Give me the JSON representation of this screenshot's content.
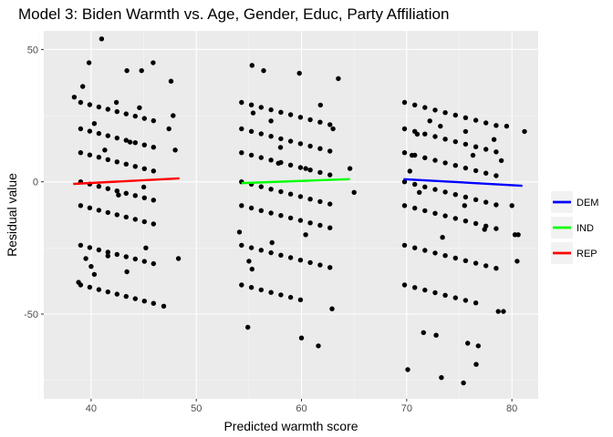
{
  "chart_data": {
    "type": "scatter",
    "title": "Model 3: Biden Warmth vs. Age, Gender, Educ, Party Affiliation",
    "xlabel": "Predicted warmth score",
    "ylabel": "Residual value",
    "xlim": [
      35.5,
      82.5
    ],
    "ylim": [
      -82,
      57
    ],
    "x_ticks": [
      40,
      50,
      60,
      70,
      80
    ],
    "y_ticks": [
      -50,
      0,
      50
    ],
    "grid": true,
    "legend_position": "right",
    "fit_lines": [
      {
        "name": "DEM",
        "color": "#0000ff",
        "x": [
          69.7,
          81.0
        ],
        "y": [
          1.0,
          -1.5
        ]
      },
      {
        "name": "IND",
        "color": "#00ff00",
        "x": [
          54.3,
          64.6
        ],
        "y": [
          -0.5,
          1.0
        ]
      },
      {
        "name": "REP",
        "color": "#ff0000",
        "x": [
          38.3,
          48.4
        ],
        "y": [
          -0.8,
          1.3
        ]
      }
    ],
    "band_residuals": [
      30,
      20,
      11,
      0,
      -9,
      -24,
      -39
    ],
    "groups": [
      {
        "party": "REP",
        "x_start": 39.0,
        "x_end": 46.8,
        "bands": [
          {
            "r": 30,
            "n": 9
          },
          {
            "r": 20,
            "n": 9
          },
          {
            "r": 11,
            "n": 9
          },
          {
            "r": 0,
            "n": 9
          },
          {
            "r": -9,
            "n": 9
          },
          {
            "r": -24,
            "n": 9
          },
          {
            "r": -39,
            "n": 9
          }
        ]
      },
      {
        "party": "IND",
        "x_start": 54.3,
        "x_end": 62.7,
        "bands": [
          {
            "r": 30,
            "n": 10
          },
          {
            "r": 20,
            "n": 10
          },
          {
            "r": 11,
            "n": 10
          },
          {
            "r": 0,
            "n": 10
          },
          {
            "r": -9,
            "n": 10
          },
          {
            "r": -24,
            "n": 10
          },
          {
            "r": -39,
            "n": 7
          }
        ]
      },
      {
        "party": "DEM",
        "x_start": 69.8,
        "x_end": 78.5,
        "bands": [
          {
            "r": 30,
            "n": 10
          },
          {
            "r": 20,
            "n": 10
          },
          {
            "r": 11,
            "n": 10
          },
          {
            "r": 0,
            "n": 10
          },
          {
            "r": -9,
            "n": 10
          },
          {
            "r": -24,
            "n": 10
          },
          {
            "r": -39,
            "n": 8
          }
        ]
      }
    ],
    "extra_points": [
      [
        38.4,
        32
      ],
      [
        39.2,
        36
      ],
      [
        39.8,
        45
      ],
      [
        41.0,
        54
      ],
      [
        43.4,
        42
      ],
      [
        44.8,
        42
      ],
      [
        45.9,
        45
      ],
      [
        47.6,
        38
      ],
      [
        40.3,
        22
      ],
      [
        42.4,
        30
      ],
      [
        44.6,
        28
      ],
      [
        47.8,
        25
      ],
      [
        41.3,
        12
      ],
      [
        43.7,
        15
      ],
      [
        47.4,
        20
      ],
      [
        48.0,
        12
      ],
      [
        42.6,
        -5
      ],
      [
        45.0,
        -2
      ],
      [
        48.3,
        -29
      ],
      [
        40.0,
        -32
      ],
      [
        41.6,
        -28
      ],
      [
        43.4,
        -34
      ],
      [
        45.2,
        -25
      ],
      [
        40.3,
        -35
      ],
      [
        46.9,
        -47
      ],
      [
        39.5,
        -29
      ],
      [
        38.8,
        -38
      ],
      [
        54.1,
        -19
      ],
      [
        55.3,
        44
      ],
      [
        56.4,
        42
      ],
      [
        55.4,
        26
      ],
      [
        57.1,
        23
      ],
      [
        59.8,
        41
      ],
      [
        61.8,
        29
      ],
      [
        63.5,
        39
      ],
      [
        57.8,
        7
      ],
      [
        60.4,
        5
      ],
      [
        63.0,
        20
      ],
      [
        64.6,
        5
      ],
      [
        65.0,
        -4
      ],
      [
        55.0,
        -30
      ],
      [
        57.2,
        -23
      ],
      [
        60.4,
        -20
      ],
      [
        62.9,
        -48
      ],
      [
        60.0,
        -59
      ],
      [
        54.9,
        -55
      ],
      [
        61.6,
        -62
      ],
      [
        58.0,
        13
      ],
      [
        55.3,
        -33
      ],
      [
        70.1,
        -71
      ],
      [
        71.6,
        -57
      ],
      [
        72.8,
        -58
      ],
      [
        73.3,
        -74
      ],
      [
        75.4,
        -76
      ],
      [
        75.8,
        -61
      ],
      [
        76.6,
        -69
      ],
      [
        76.8,
        -62
      ],
      [
        78.7,
        -49
      ],
      [
        79.2,
        -49
      ],
      [
        80.3,
        -20
      ],
      [
        80.5,
        -30
      ],
      [
        81.2,
        19
      ],
      [
        79.5,
        21
      ],
      [
        78.3,
        16
      ],
      [
        76.3,
        10
      ],
      [
        75.6,
        19
      ],
      [
        73.2,
        21
      ],
      [
        72.2,
        23
      ],
      [
        71.0,
        18
      ],
      [
        70.5,
        10
      ],
      [
        71.2,
        -4
      ],
      [
        73.4,
        -21
      ],
      [
        75.5,
        -9
      ],
      [
        77.4,
        -18
      ],
      [
        80.0,
        -9
      ],
      [
        79.0,
        8
      ],
      [
        80.6,
        -20
      ],
      [
        70.3,
        4
      ]
    ]
  }
}
